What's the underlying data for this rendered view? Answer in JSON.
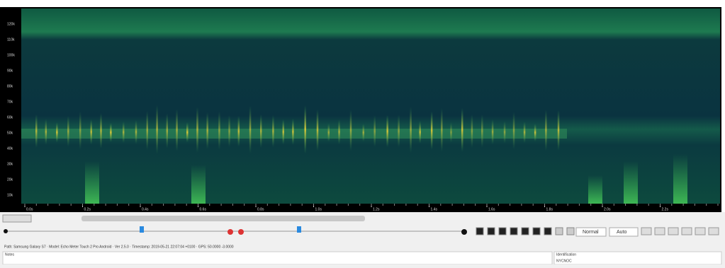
{
  "spectrogram": {
    "frequency_labels": [
      "120k",
      "110k",
      "100k",
      "90k",
      "80k",
      "70k",
      "60k",
      "50k",
      "40k",
      "30k",
      "20k",
      "10k"
    ],
    "time_labels": [
      "0.0s",
      "0.2s",
      "0.4s",
      "0.6s",
      "0.8s",
      "1.0s",
      "1.2s",
      "1.4s",
      "1.6s",
      "1.8s",
      "2.0s",
      "2.2s"
    ]
  },
  "toolbar": {
    "view_mode": "Normal",
    "zoom": "Auto"
  },
  "info_line": "Path: Samsung Galaxy S7 · Model: Echo Meter Touch 2 Pro Android · Ver 2.5.0 · Timestamp: 2019-05-21 22:07:04 +0100 · GPS: 50.0000 -3.0000",
  "notes_label": "Notes",
  "identification_label": "Identification",
  "identification_value": "NYCNOC"
}
